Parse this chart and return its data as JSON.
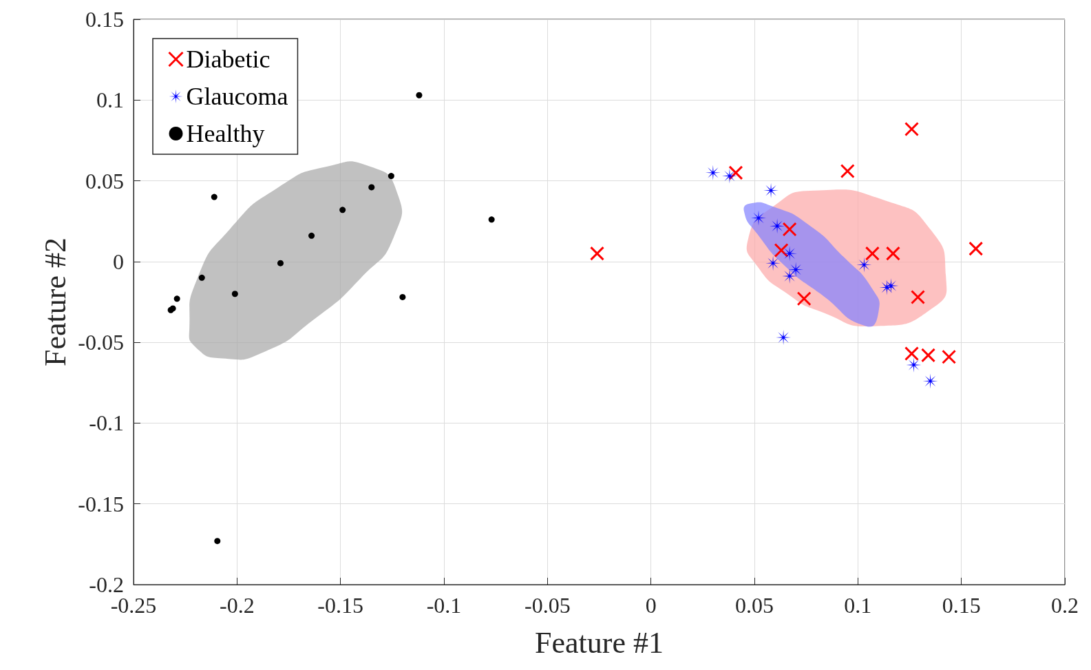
{
  "chart_data": {
    "type": "scatter",
    "xlabel": "Feature #1",
    "ylabel": "Feature #2",
    "xlim": [
      -0.25,
      0.2
    ],
    "xticks": [
      -0.25,
      -0.2,
      -0.15,
      -0.1,
      -0.05,
      0,
      0.05,
      0.1,
      0.15,
      0.2
    ],
    "ylim": [
      -0.2,
      0.15
    ],
    "yticks": [
      -0.2,
      -0.15,
      -0.1,
      -0.05,
      0,
      0.05,
      0.1,
      0.15
    ],
    "grid": true,
    "legend": "top left",
    "series": [
      {
        "name": "Diabetic",
        "color": "#ff0000",
        "marker": "cross",
        "x": [
          -0.026,
          0.041,
          0.095,
          0.126,
          0.157,
          0.107,
          0.117,
          0.129,
          0.074,
          0.067,
          0.063,
          0.126,
          0.134,
          0.144
        ],
        "values": [
          0.005,
          0.055,
          0.056,
          0.082,
          0.008,
          0.005,
          0.005,
          -0.022,
          -0.023,
          0.02,
          0.007,
          -0.057,
          -0.058,
          -0.059
        ]
      },
      {
        "name": "Glaucoma",
        "color": "#0000ff",
        "marker": "star",
        "x": [
          0.03,
          0.038,
          0.058,
          0.052,
          0.061,
          0.067,
          0.059,
          0.07,
          0.067,
          0.103,
          0.114,
          0.116,
          0.064,
          0.127,
          0.135
        ],
        "values": [
          0.055,
          0.053,
          0.044,
          0.027,
          0.022,
          0.005,
          -0.001,
          -0.005,
          -0.009,
          -0.002,
          -0.016,
          -0.015,
          -0.047,
          -0.064,
          -0.074
        ]
      },
      {
        "name": "Healthy",
        "color": "#000000",
        "marker": "circle",
        "x": [
          -0.232,
          -0.231,
          -0.229,
          -0.217,
          -0.211,
          -0.2095,
          -0.201,
          -0.179,
          -0.164,
          -0.149,
          -0.135,
          -0.1255,
          -0.12,
          -0.112,
          -0.077
        ],
        "values": [
          -0.03,
          -0.029,
          -0.023,
          -0.01,
          0.04,
          -0.173,
          -0.02,
          -0.001,
          0.016,
          0.032,
          0.046,
          0.053,
          -0.022,
          0.103,
          0.026
        ]
      },
      {
        "type": "area",
        "color": "#a6a6a6",
        "x": [
          -0.223,
          -0.219,
          -0.2035,
          -0.18,
          -0.156,
          -0.136,
          -0.123,
          -0.124,
          -0.14,
          -0.163,
          -0.187,
          -0.207,
          -0.22
        ],
        "values": [
          -0.041,
          -0.01,
          0.02,
          0.046,
          0.059,
          0.059,
          0.044,
          0.016,
          -0.01,
          -0.036,
          -0.056,
          -0.06,
          -0.053
        ]
      },
      {
        "type": "area",
        "color": "#fca7a7",
        "x": [
          0.047,
          0.059,
          0.079,
          0.115,
          0.135,
          0.1425,
          0.137,
          0.108,
          0.082,
          0.066,
          0.0515
        ],
        "values": [
          0.014,
          0.034,
          0.044,
          0.037,
          0.02,
          -0.0085,
          -0.028,
          -0.04,
          -0.031,
          -0.02,
          -0.003
        ]
      },
      {
        "type": "area",
        "color": "#8080ff",
        "x": [
          0.045,
          0.048,
          0.059,
          0.076,
          0.093,
          0.107,
          0.11,
          0.104,
          0.082,
          0.065,
          0.0515
        ],
        "values": [
          0.031,
          0.036,
          0.034,
          0.023,
          0.003,
          -0.017,
          -0.031,
          -0.04,
          -0.02,
          -0.003,
          0.017
        ]
      }
    ]
  }
}
